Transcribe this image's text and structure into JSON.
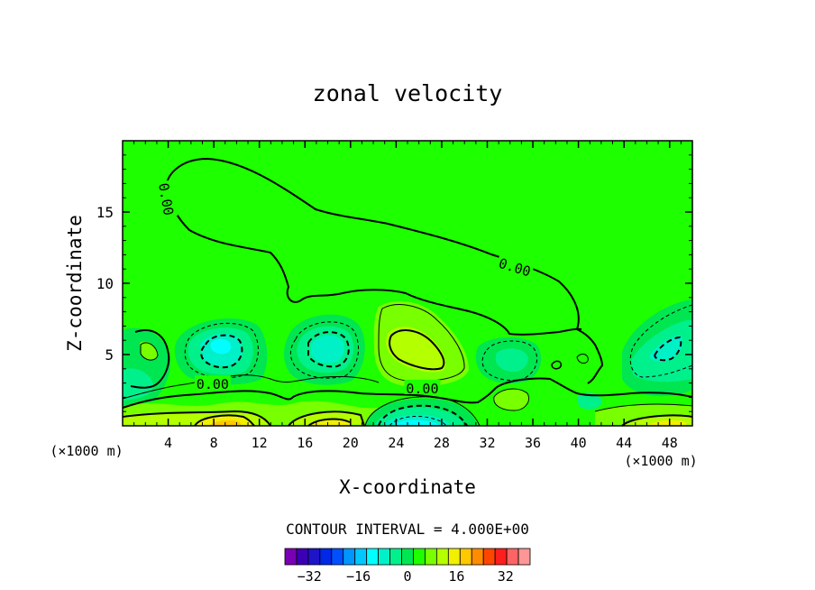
{
  "chart_data": {
    "type": "contour",
    "title": "zonal velocity",
    "xlabel": "X-coordinate",
    "ylabel": "Z-coordinate",
    "x_unit_left": "(×1000 m)",
    "x_unit_right": "(×1000 m)",
    "xlim": [
      0,
      50
    ],
    "ylim": [
      0,
      20
    ],
    "x_ticks": [
      4,
      8,
      12,
      16,
      20,
      24,
      28,
      32,
      36,
      40,
      44,
      48
    ],
    "y_ticks": [
      5,
      10,
      15
    ],
    "contour_interval_label": "CONTOUR INTERVAL = 4.000E+00",
    "contour_interval": 4,
    "zero_labels": [
      {
        "text": "0.00",
        "x": 3.8,
        "y": 15.9,
        "rot": 80
      },
      {
        "text": "0.00",
        "x": 34.4,
        "y": 11.1,
        "rot": 17
      },
      {
        "text": "0.00",
        "x": 7.9,
        "y": 2.9,
        "rot": 0
      },
      {
        "text": "0.00",
        "x": 26.3,
        "y": 2.6,
        "rot": 0
      }
    ],
    "colorbar": {
      "levels": [
        -40,
        -36,
        -32,
        -28,
        -24,
        -20,
        -16,
        -12,
        -8,
        -4,
        0,
        4,
        8,
        12,
        16,
        20,
        24,
        28,
        32,
        36,
        40
      ],
      "colors": [
        "#7a00b4",
        "#3c00b4",
        "#1e14c8",
        "#0028e6",
        "#0050ff",
        "#0096ff",
        "#00c8ff",
        "#00ffff",
        "#00f0c8",
        "#00f08c",
        "#00e650",
        "#1eff00",
        "#78ff00",
        "#b4ff00",
        "#f0f000",
        "#ffc800",
        "#ff8c00",
        "#ff4600",
        "#ff1e1e",
        "#ff6464",
        "#ff9696"
      ],
      "tick_labels": [
        "-32",
        "-16",
        "0",
        "16",
        "32"
      ],
      "tick_values": [
        -32,
        -16,
        0,
        16,
        32
      ]
    }
  }
}
